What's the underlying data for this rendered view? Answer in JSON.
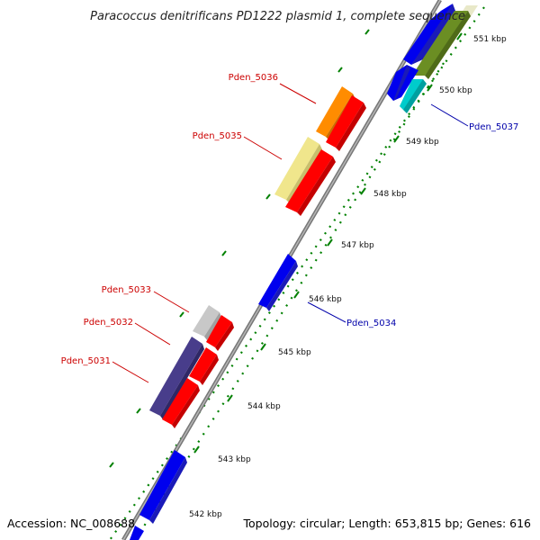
{
  "title": "Paracoccus denitrificans PD1222 plasmid 1, complete sequence",
  "footer": {
    "accession": "Accession: NC_008688",
    "summary": "Topology: circular; Length: 653,815 bp; Genes: 616"
  },
  "ticks": [
    "542 kbp",
    "543 kbp",
    "544 kbp",
    "545 kbp",
    "546 kbp",
    "547 kbp",
    "548 kbp",
    "549 kbp",
    "550 kbp",
    "551 kbp"
  ],
  "gene_labels": {
    "pden_5031": "Pden_5031",
    "pden_5032": "Pden_5032",
    "pden_5033": "Pden_5033",
    "pden_5034": "Pden_5034",
    "pden_5035": "Pden_5035",
    "pden_5036": "Pden_5036",
    "pden_5037": "Pden_5037"
  },
  "colors": {
    "label_red": "#cc0000",
    "label_blue": "#0000aa",
    "backbone": "#888888",
    "tick_green": "#008000",
    "gene_blue": "#0000ee",
    "gene_red": "#ff0000",
    "gene_orange": "#ff8c00",
    "gene_pale_yellow": "#f0e68c",
    "gene_olive": "#6b8e23",
    "gene_cyan": "#00cccc",
    "gene_dark_slate": "#483d8b",
    "gene_grey": "#c0c0c0"
  }
}
